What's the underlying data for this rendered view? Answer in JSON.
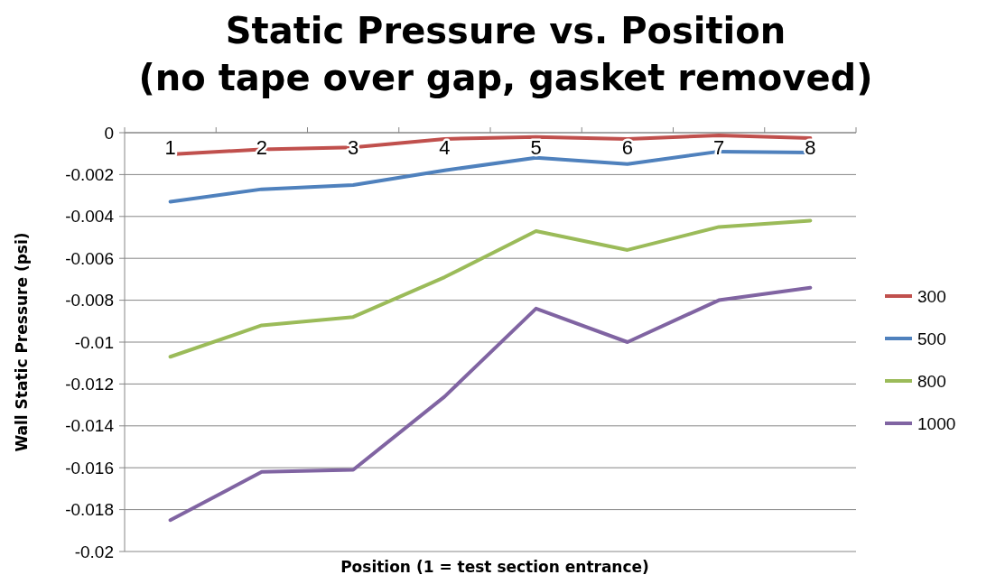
{
  "chart_data": {
    "type": "line",
    "title": "Static Pressure vs. Position\n(no tape over gap, gasket removed)",
    "xlabel": "Position (1 = test section entrance)",
    "ylabel": "Wall Static Pressure (psi)",
    "categories": [
      "1",
      "2",
      "3",
      "4",
      "5",
      "6",
      "7",
      "8"
    ],
    "ylim": [
      -0.02,
      0
    ],
    "yticks": [
      -0.02,
      -0.018,
      -0.016,
      -0.014,
      -0.012,
      -0.01,
      -0.008,
      -0.006,
      -0.004,
      -0.002,
      0
    ],
    "grid": "y",
    "legend": "right",
    "marker": "none",
    "line_style": "solid",
    "series": [
      {
        "name": "300",
        "color": "#c0504d",
        "values": [
          -0.00103,
          -0.0008,
          -0.0007,
          -0.0003,
          -0.0002,
          -0.0003,
          -0.00013,
          -0.00026
        ]
      },
      {
        "name": "500",
        "color": "#4f81bd",
        "values": [
          -0.0033,
          -0.0027,
          -0.0025,
          -0.0018,
          -0.0012,
          -0.0015,
          -0.0009,
          -0.00095
        ]
      },
      {
        "name": "800",
        "color": "#9bbb59",
        "values": [
          -0.0107,
          -0.0092,
          -0.0088,
          -0.0069,
          -0.0047,
          -0.0056,
          -0.0045,
          -0.0042
        ]
      },
      {
        "name": "1000",
        "color": "#8064a2",
        "values": [
          -0.0185,
          -0.0162,
          -0.0161,
          -0.0126,
          -0.0084,
          -0.01,
          -0.008,
          -0.0074
        ]
      }
    ]
  }
}
